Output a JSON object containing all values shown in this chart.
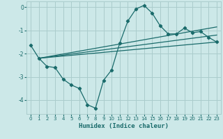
{
  "xlabel": "Humidex (Indice chaleur)",
  "xlim": [
    -0.5,
    23.5
  ],
  "ylim": [
    -4.6,
    0.25
  ],
  "yticks": [
    0,
    -1,
    -2,
    -3,
    -4
  ],
  "xticks": [
    0,
    1,
    2,
    3,
    4,
    5,
    6,
    7,
    8,
    9,
    10,
    11,
    12,
    13,
    14,
    15,
    16,
    17,
    18,
    19,
    20,
    21,
    22,
    23
  ],
  "bg_color": "#cce8e8",
  "grid_color": "#aacccc",
  "line_color": "#1a6b6b",
  "line1_x": [
    0,
    1,
    2,
    3,
    4,
    5,
    6,
    7,
    8,
    9,
    10,
    11,
    12,
    13,
    14,
    15,
    16,
    17,
    18,
    19,
    20,
    21,
    22,
    23
  ],
  "line1_y": [
    -1.65,
    -2.2,
    -2.55,
    -2.6,
    -3.1,
    -3.35,
    -3.5,
    -4.2,
    -4.35,
    -3.15,
    -2.7,
    -1.55,
    -0.6,
    -0.08,
    0.08,
    -0.25,
    -0.8,
    -1.15,
    -1.15,
    -0.9,
    -1.1,
    -1.05,
    -1.3,
    -1.5
  ],
  "line2_x": [
    1,
    23
  ],
  "line2_y": [
    -2.2,
    -1.5
  ],
  "line3_x": [
    1,
    23
  ],
  "line3_y": [
    -2.2,
    -1.2
  ],
  "line4_x": [
    1,
    23
  ],
  "line4_y": [
    -2.2,
    -0.85
  ]
}
